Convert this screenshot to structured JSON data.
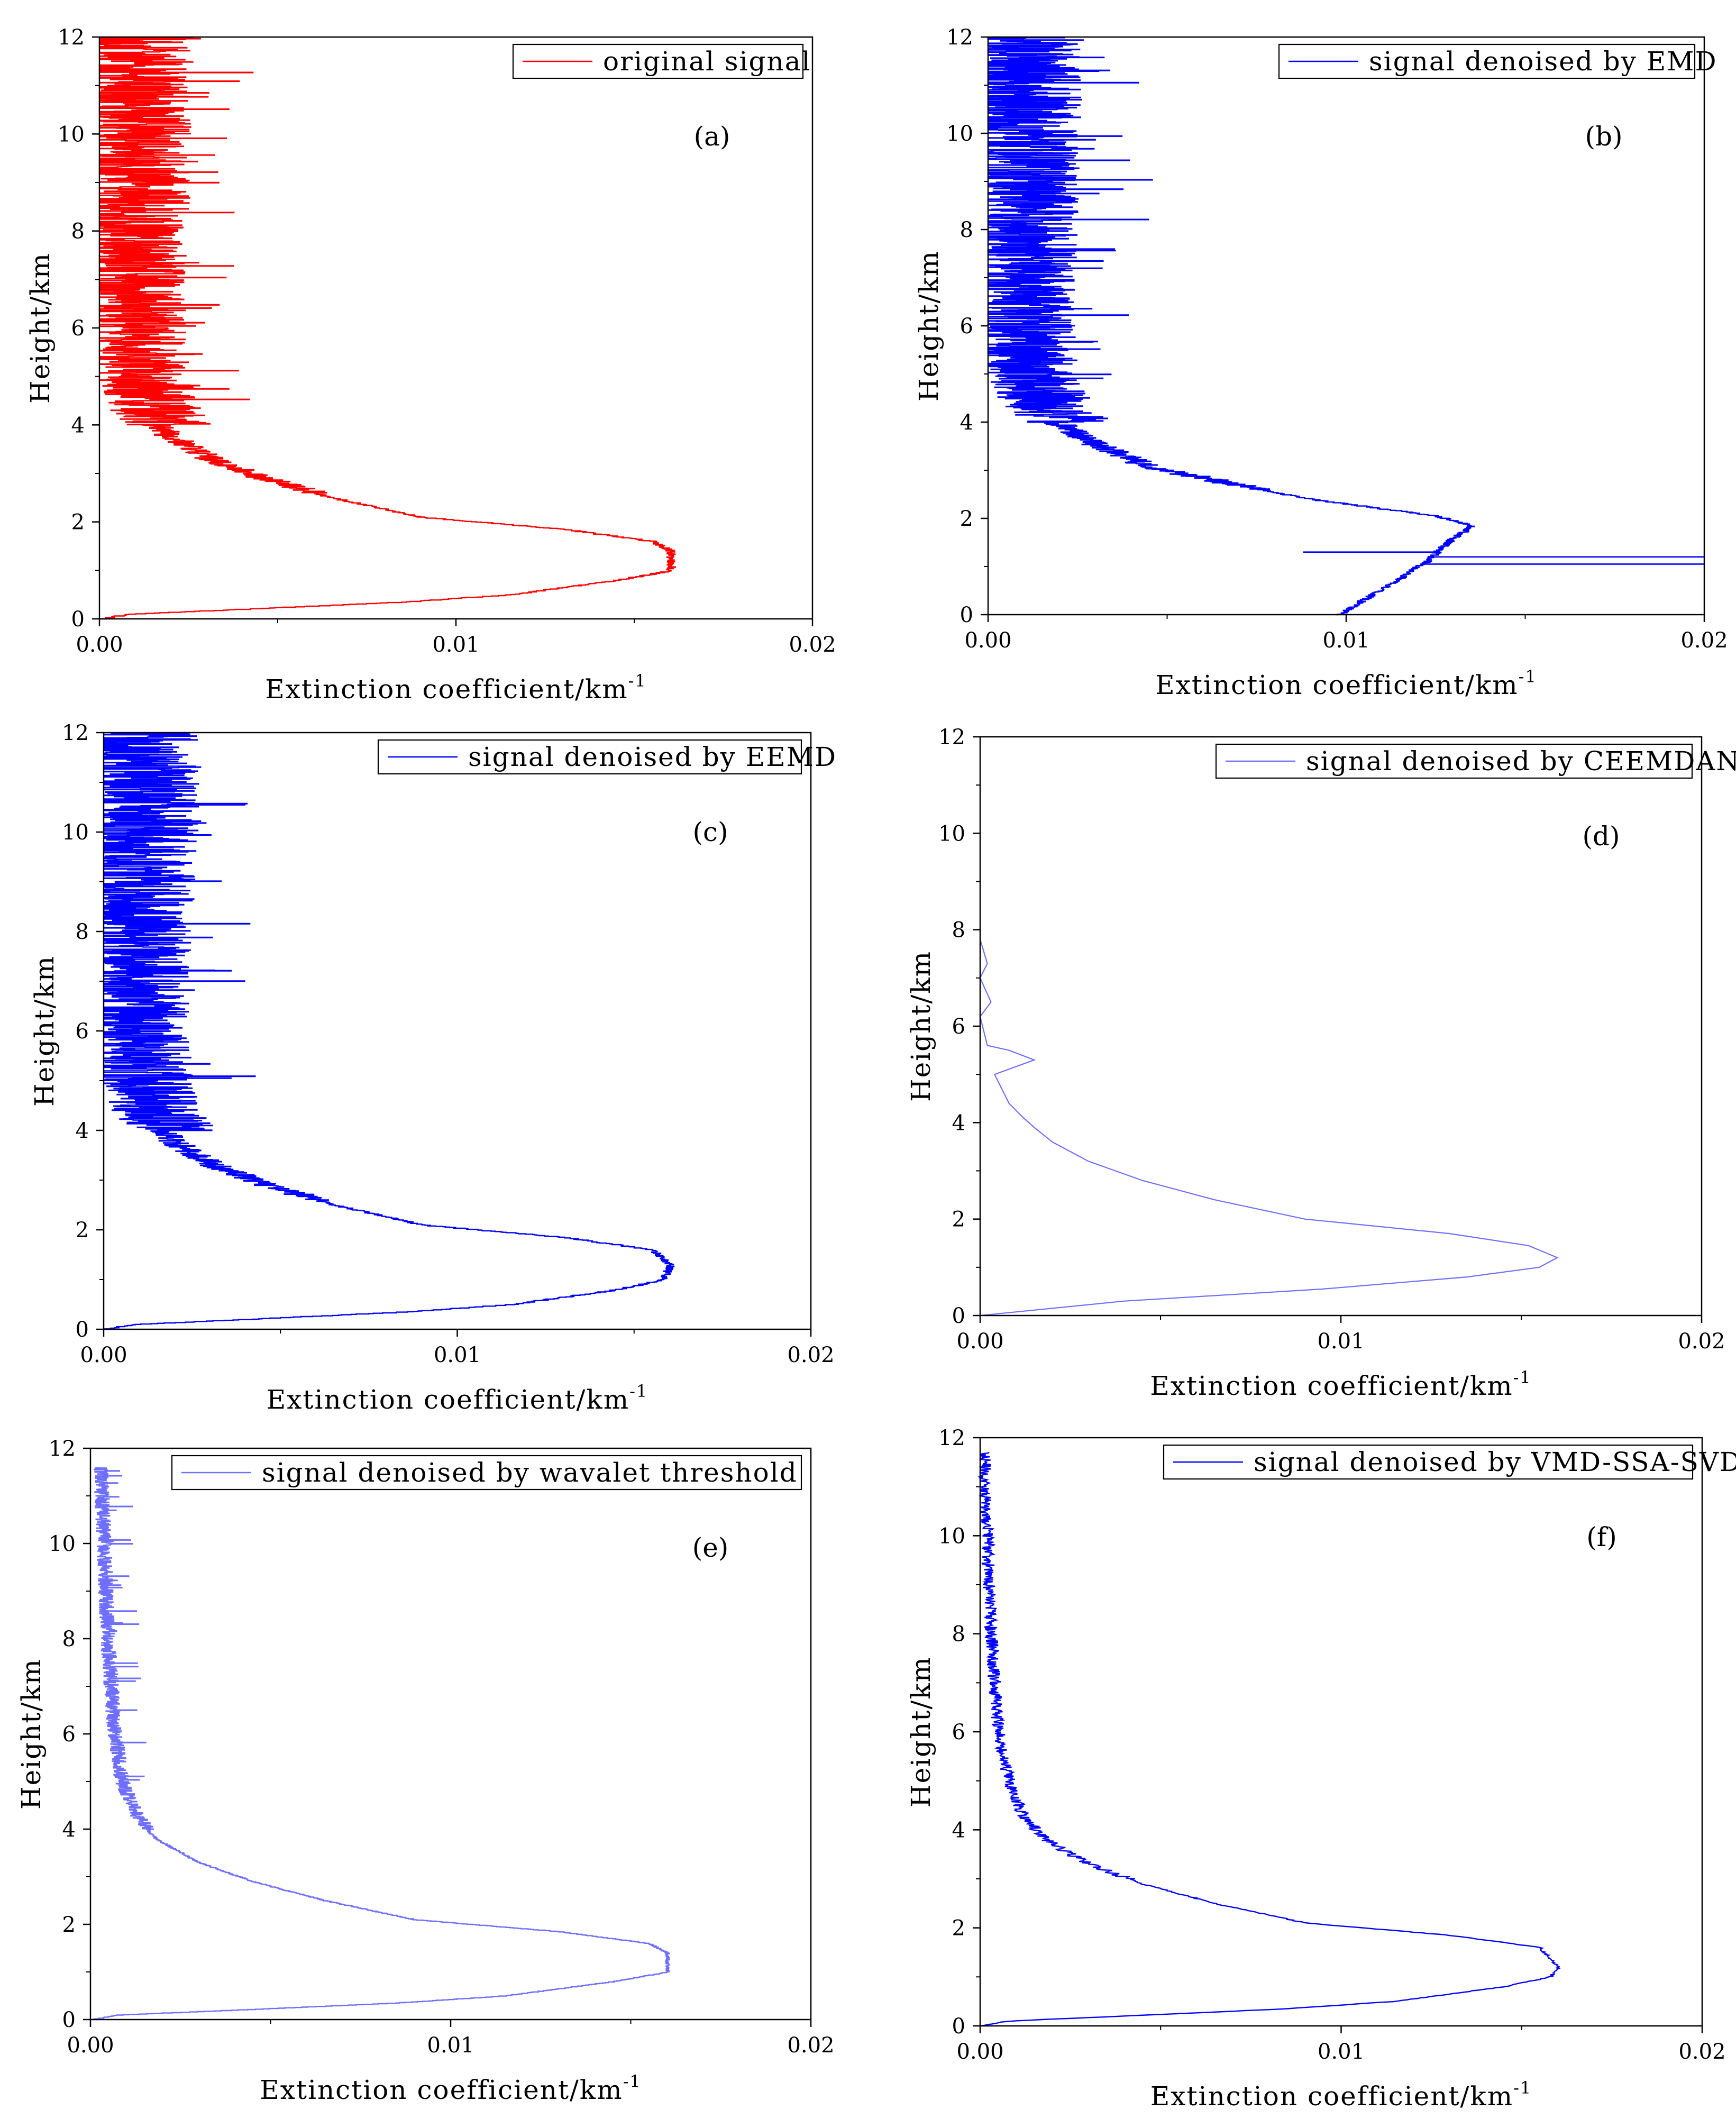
{
  "figure": {
    "colors": {
      "red": "#ff0000",
      "blue": "#0000ff",
      "lightblue": "#6f6fff",
      "axis": "#000000"
    }
  },
  "chart_data": [
    {
      "id": "a",
      "type": "line",
      "panel_label": "(a)",
      "legend": "original signal",
      "series_color": "#ff0000",
      "xlabel": "Extinction coefficient/km",
      "xlabel_sup": "-1",
      "ylabel": "Height/km",
      "xlim": [
        0,
        0.02
      ],
      "ylim": [
        0,
        12
      ],
      "xticks": [
        "0.00",
        "0.01",
        "0.02"
      ],
      "yticks": [
        "0",
        "2",
        "4",
        "6",
        "8",
        "10",
        "12"
      ],
      "style": "stepped-noisy",
      "profile": {
        "x": [
          0.0,
          0.0008,
          0.004,
          0.0085,
          0.0115,
          0.0145,
          0.016,
          0.016,
          0.0155,
          0.013,
          0.009,
          0.0065,
          0.0045,
          0.003,
          0.0018,
          0.0012,
          0.0008,
          0.0006,
          0.0005,
          0.0004,
          0.0003
        ],
        "y": [
          0.0,
          0.1,
          0.2,
          0.35,
          0.5,
          0.8,
          1.0,
          1.4,
          1.6,
          1.85,
          2.1,
          2.5,
          2.9,
          3.3,
          3.8,
          4.3,
          5.0,
          6.0,
          8.0,
          10.0,
          12.0
        ]
      }
    },
    {
      "id": "b",
      "type": "line",
      "panel_label": "(b)",
      "legend": "signal denoised by EMD",
      "series_color": "#0000ff",
      "xlabel": "Extinction coefficient/km",
      "xlabel_sup": "-1",
      "ylabel": "Height/km",
      "xlim": [
        0,
        0.02
      ],
      "ylim": [
        0,
        12
      ],
      "xticks": [
        "0.00",
        "0.01",
        "0.02"
      ],
      "yticks": [
        "0",
        "2",
        "4",
        "6",
        "8",
        "10",
        "12"
      ],
      "style": "noisy",
      "profile": {
        "x": [
          0.0098,
          0.0102,
          0.0108,
          0.0114,
          0.0118,
          0.0122,
          0.0128,
          0.0135,
          0.0125,
          0.009,
          0.0065,
          0.0045,
          0.003,
          0.0018,
          0.0012,
          0.0008,
          0.0006,
          0.0005,
          0.0004,
          0.0004
        ],
        "y": [
          0.0,
          0.2,
          0.45,
          0.7,
          0.95,
          1.1,
          1.5,
          1.85,
          2.05,
          2.4,
          2.75,
          3.05,
          3.5,
          4.0,
          4.5,
          5.0,
          6.0,
          8.0,
          10.0,
          12.0
        ]
      },
      "spikes": [
        {
          "y": 1.05,
          "x": 0.02
        },
        {
          "y": 1.2,
          "x": 0.02
        },
        {
          "y": 1.3,
          "x": 0.0088
        }
      ]
    },
    {
      "id": "c",
      "type": "line",
      "panel_label": "(c)",
      "legend": "signal denoised by EEMD",
      "series_color": "#0000ff",
      "xlabel": "Extinction coefficient/km",
      "xlabel_sup": "-1",
      "ylabel": "Height/km",
      "xlim": [
        0,
        0.02
      ],
      "ylim": [
        0,
        12
      ],
      "xticks": [
        "0.00",
        "0.01",
        "0.02"
      ],
      "yticks": [
        "0",
        "2",
        "4",
        "6",
        "8",
        "10",
        "12"
      ],
      "style": "noisy",
      "profile": {
        "x": [
          0.0,
          0.0008,
          0.004,
          0.0085,
          0.0115,
          0.0145,
          0.0158,
          0.016,
          0.0155,
          0.013,
          0.009,
          0.0065,
          0.0045,
          0.003,
          0.0018,
          0.0012,
          0.0008,
          0.0006,
          0.0005,
          0.0005,
          0.0005
        ],
        "y": [
          0.0,
          0.1,
          0.2,
          0.35,
          0.5,
          0.8,
          1.0,
          1.3,
          1.6,
          1.85,
          2.1,
          2.5,
          2.9,
          3.3,
          3.8,
          4.3,
          5.0,
          6.0,
          8.0,
          10.0,
          12.0
        ]
      }
    },
    {
      "id": "d",
      "type": "line",
      "panel_label": "(d)",
      "legend": "signal denoised by CEEMDAN",
      "series_color": "#6f6fff",
      "xlabel": "Extinction coefficient/km",
      "xlabel_sup": "-1",
      "ylabel": "Height/km",
      "xlim": [
        0,
        0.02
      ],
      "ylim": [
        0,
        12
      ],
      "xticks": [
        "0.00",
        "0.01",
        "0.02"
      ],
      "yticks": [
        "0",
        "2",
        "4",
        "6",
        "8",
        "10",
        "12"
      ],
      "style": "smooth",
      "profile": {
        "x": [
          0.0,
          0.004,
          0.0095,
          0.0135,
          0.0155,
          0.016,
          0.0152,
          0.013,
          0.009,
          0.0065,
          0.0045,
          0.003,
          0.002,
          0.0015,
          0.0012,
          0.0008,
          0.0004,
          0.0015,
          0.0008,
          0.0002,
          0.0001,
          0.0,
          0.0003,
          0.0,
          0.0002,
          0.0
        ],
        "y": [
          0.0,
          0.3,
          0.55,
          0.8,
          1.0,
          1.2,
          1.45,
          1.7,
          2.0,
          2.4,
          2.8,
          3.2,
          3.6,
          3.9,
          4.1,
          4.4,
          5.0,
          5.3,
          5.5,
          5.6,
          5.9,
          6.2,
          6.5,
          7.0,
          7.3,
          7.8
        ]
      }
    },
    {
      "id": "e",
      "type": "line",
      "panel_label": "(e)",
      "legend": "signal denoised by wavalet threshold",
      "series_color": "#6f6fff",
      "xlabel": "Extinction coefficient/km",
      "xlabel_sup": "-1",
      "ylabel": "Height/km",
      "xlim": [
        0,
        0.02
      ],
      "ylim": [
        0,
        12
      ],
      "xticks": [
        "0.00",
        "0.01",
        "0.02"
      ],
      "yticks": [
        "0",
        "2",
        "4",
        "6",
        "8",
        "10",
        "12"
      ],
      "style": "stepped",
      "profile": {
        "x": [
          0.0,
          0.0008,
          0.004,
          0.0085,
          0.0115,
          0.0145,
          0.016,
          0.016,
          0.0155,
          0.013,
          0.009,
          0.0065,
          0.0045,
          0.003,
          0.0018,
          0.0012,
          0.0008,
          0.0006,
          0.0004,
          0.0003,
          0.0002
        ],
        "y": [
          0.0,
          0.1,
          0.2,
          0.35,
          0.5,
          0.8,
          1.0,
          1.4,
          1.6,
          1.85,
          2.1,
          2.5,
          2.9,
          3.3,
          3.8,
          4.3,
          5.0,
          6.0,
          8.0,
          10.0,
          11.6
        ]
      }
    },
    {
      "id": "f",
      "type": "line",
      "panel_label": "(f)",
      "legend": "signal denoised by VMD-SSA-SVD",
      "series_color": "#0000ff",
      "xlabel": "Extinction coefficient/km",
      "xlabel_sup": "-1",
      "ylabel": "Height/km",
      "xlim": [
        0,
        0.02
      ],
      "ylim": [
        0,
        12
      ],
      "xticks": [
        "0.00",
        "0.01",
        "0.02"
      ],
      "yticks": [
        "0",
        "2",
        "4",
        "6",
        "8",
        "10",
        "12"
      ],
      "style": "jitter",
      "profile": {
        "x": [
          0.0,
          0.0008,
          0.004,
          0.0085,
          0.0115,
          0.0145,
          0.0158,
          0.016,
          0.0155,
          0.013,
          0.009,
          0.0065,
          0.0045,
          0.003,
          0.0018,
          0.0012,
          0.0008,
          0.0005,
          0.0003,
          0.0002,
          0.0001
        ],
        "y": [
          0.0,
          0.1,
          0.2,
          0.35,
          0.5,
          0.8,
          1.0,
          1.2,
          1.6,
          1.85,
          2.1,
          2.5,
          2.9,
          3.3,
          3.8,
          4.3,
          5.0,
          6.0,
          8.0,
          10.0,
          11.7
        ]
      }
    }
  ]
}
